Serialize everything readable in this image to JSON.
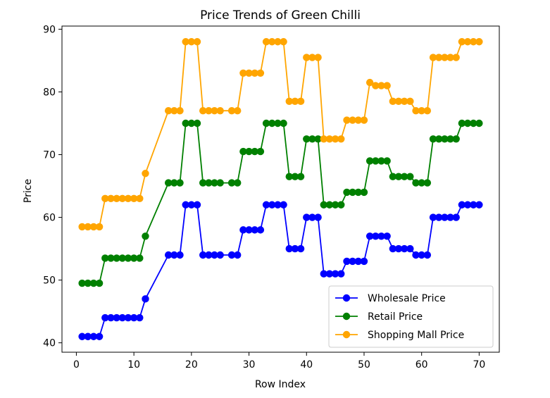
{
  "chart_data": {
    "type": "line",
    "title": "Price Trends of Green Chilli",
    "xlabel": "Row Index",
    "ylabel": "Price",
    "xlim": [
      -2.5,
      73.5
    ],
    "ylim": [
      38.5,
      90.5
    ],
    "xticks": [
      0,
      10,
      20,
      30,
      40,
      50,
      60,
      70
    ],
    "yticks": [
      40,
      50,
      60,
      70,
      80,
      90
    ],
    "grid": false,
    "legend_position": "lower-right",
    "x": [
      1,
      2,
      3,
      4,
      5,
      6,
      7,
      8,
      9,
      10,
      11,
      12,
      16,
      17,
      18,
      19,
      20,
      21,
      22,
      23,
      24,
      25,
      27,
      28,
      29,
      30,
      31,
      32,
      33,
      34,
      35,
      36,
      37,
      38,
      39,
      40,
      41,
      42,
      43,
      44,
      45,
      46,
      47,
      48,
      49,
      50,
      51,
      52,
      53,
      54,
      55,
      56,
      57,
      58,
      59,
      60,
      61,
      62,
      63,
      64,
      65,
      66,
      67,
      68,
      69,
      70
    ],
    "series": [
      {
        "name": "Wholesale Price",
        "color": "#0000ff",
        "values": [
          41,
          41,
          41,
          41,
          44,
          44,
          44,
          44,
          44,
          44,
          44,
          47,
          54,
          54,
          54,
          62,
          62,
          62,
          54,
          54,
          54,
          54,
          54,
          54,
          58,
          58,
          58,
          58,
          62,
          62,
          62,
          62,
          55,
          55,
          55,
          60,
          60,
          60,
          51,
          51,
          51,
          51,
          53,
          53,
          53,
          53,
          57,
          57,
          57,
          57,
          55,
          55,
          55,
          55,
          54,
          54,
          54,
          60,
          60,
          60,
          60,
          60,
          62,
          62,
          62,
          62
        ]
      },
      {
        "name": "Retail Price",
        "color": "#008000",
        "values": [
          49.5,
          49.5,
          49.5,
          49.5,
          53.5,
          53.5,
          53.5,
          53.5,
          53.5,
          53.5,
          53.5,
          57,
          65.5,
          65.5,
          65.5,
          75,
          75,
          75,
          65.5,
          65.5,
          65.5,
          65.5,
          65.5,
          65.5,
          70.5,
          70.5,
          70.5,
          70.5,
          75,
          75,
          75,
          75,
          66.5,
          66.5,
          66.5,
          72.5,
          72.5,
          72.5,
          62,
          62,
          62,
          62,
          64,
          64,
          64,
          64,
          69,
          69,
          69,
          69,
          66.5,
          66.5,
          66.5,
          66.5,
          65.5,
          65.5,
          65.5,
          72.5,
          72.5,
          72.5,
          72.5,
          72.5,
          75,
          75,
          75,
          75
        ]
      },
      {
        "name": "Shopping Mall Price",
        "color": "#ffa500",
        "values": [
          58.5,
          58.5,
          58.5,
          58.5,
          63,
          63,
          63,
          63,
          63,
          63,
          63,
          67,
          77,
          77,
          77,
          88,
          88,
          88,
          77,
          77,
          77,
          77,
          77,
          77,
          83,
          83,
          83,
          83,
          88,
          88,
          88,
          88,
          78.5,
          78.5,
          78.5,
          85.5,
          85.5,
          85.5,
          72.5,
          72.5,
          72.5,
          72.5,
          75.5,
          75.5,
          75.5,
          75.5,
          81.5,
          81,
          81,
          81,
          78.5,
          78.5,
          78.5,
          78.5,
          77,
          77,
          77,
          85.5,
          85.5,
          85.5,
          85.5,
          85.5,
          88,
          88,
          88,
          88
        ]
      }
    ]
  }
}
